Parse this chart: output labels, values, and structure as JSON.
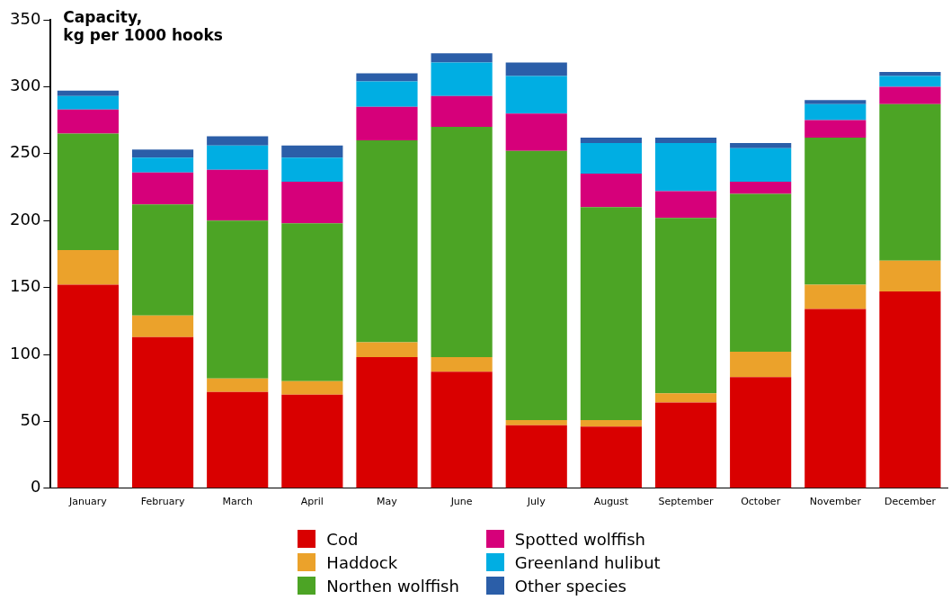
{
  "chart_data": {
    "type": "bar",
    "stacked": true,
    "ylabel": "Capacity,\nkg per 1000 hooks",
    "categories": [
      "January",
      "February",
      "March",
      "April",
      "May",
      "June",
      "July",
      "August",
      "September",
      "October",
      "November",
      "December"
    ],
    "series": [
      {
        "name": "Cod",
        "color": "#d90000",
        "values": [
          152,
          113,
          72,
          70,
          98,
          87,
          47,
          46,
          64,
          83,
          134,
          147
        ]
      },
      {
        "name": "Haddock",
        "color": "#eba22b",
        "values": [
          26,
          16,
          10,
          10,
          11,
          11,
          4,
          5,
          7,
          19,
          18,
          23
        ]
      },
      {
        "name": "Northen wolffish",
        "color": "#4ca425",
        "values": [
          87,
          83,
          118,
          118,
          151,
          172,
          201,
          159,
          131,
          118,
          110,
          117
        ]
      },
      {
        "name": "Spotted wolffish",
        "color": "#d6007a",
        "values": [
          18,
          24,
          38,
          31,
          25,
          23,
          28,
          25,
          20,
          9,
          13,
          13
        ]
      },
      {
        "name": "Greenland hulibut",
        "color": "#00aee3",
        "values": [
          10,
          11,
          18,
          18,
          19,
          25,
          28,
          23,
          36,
          25,
          12,
          8
        ]
      },
      {
        "name": "Other species",
        "color": "#2b5ea8",
        "values": [
          4,
          6,
          7,
          9,
          6,
          7,
          10,
          4,
          4,
          4,
          3,
          3
        ]
      }
    ],
    "ylim": [
      0,
      350
    ],
    "yticks": [
      0,
      50,
      100,
      150,
      200,
      250,
      300,
      350
    ],
    "grid": false,
    "legend": "bottom"
  }
}
